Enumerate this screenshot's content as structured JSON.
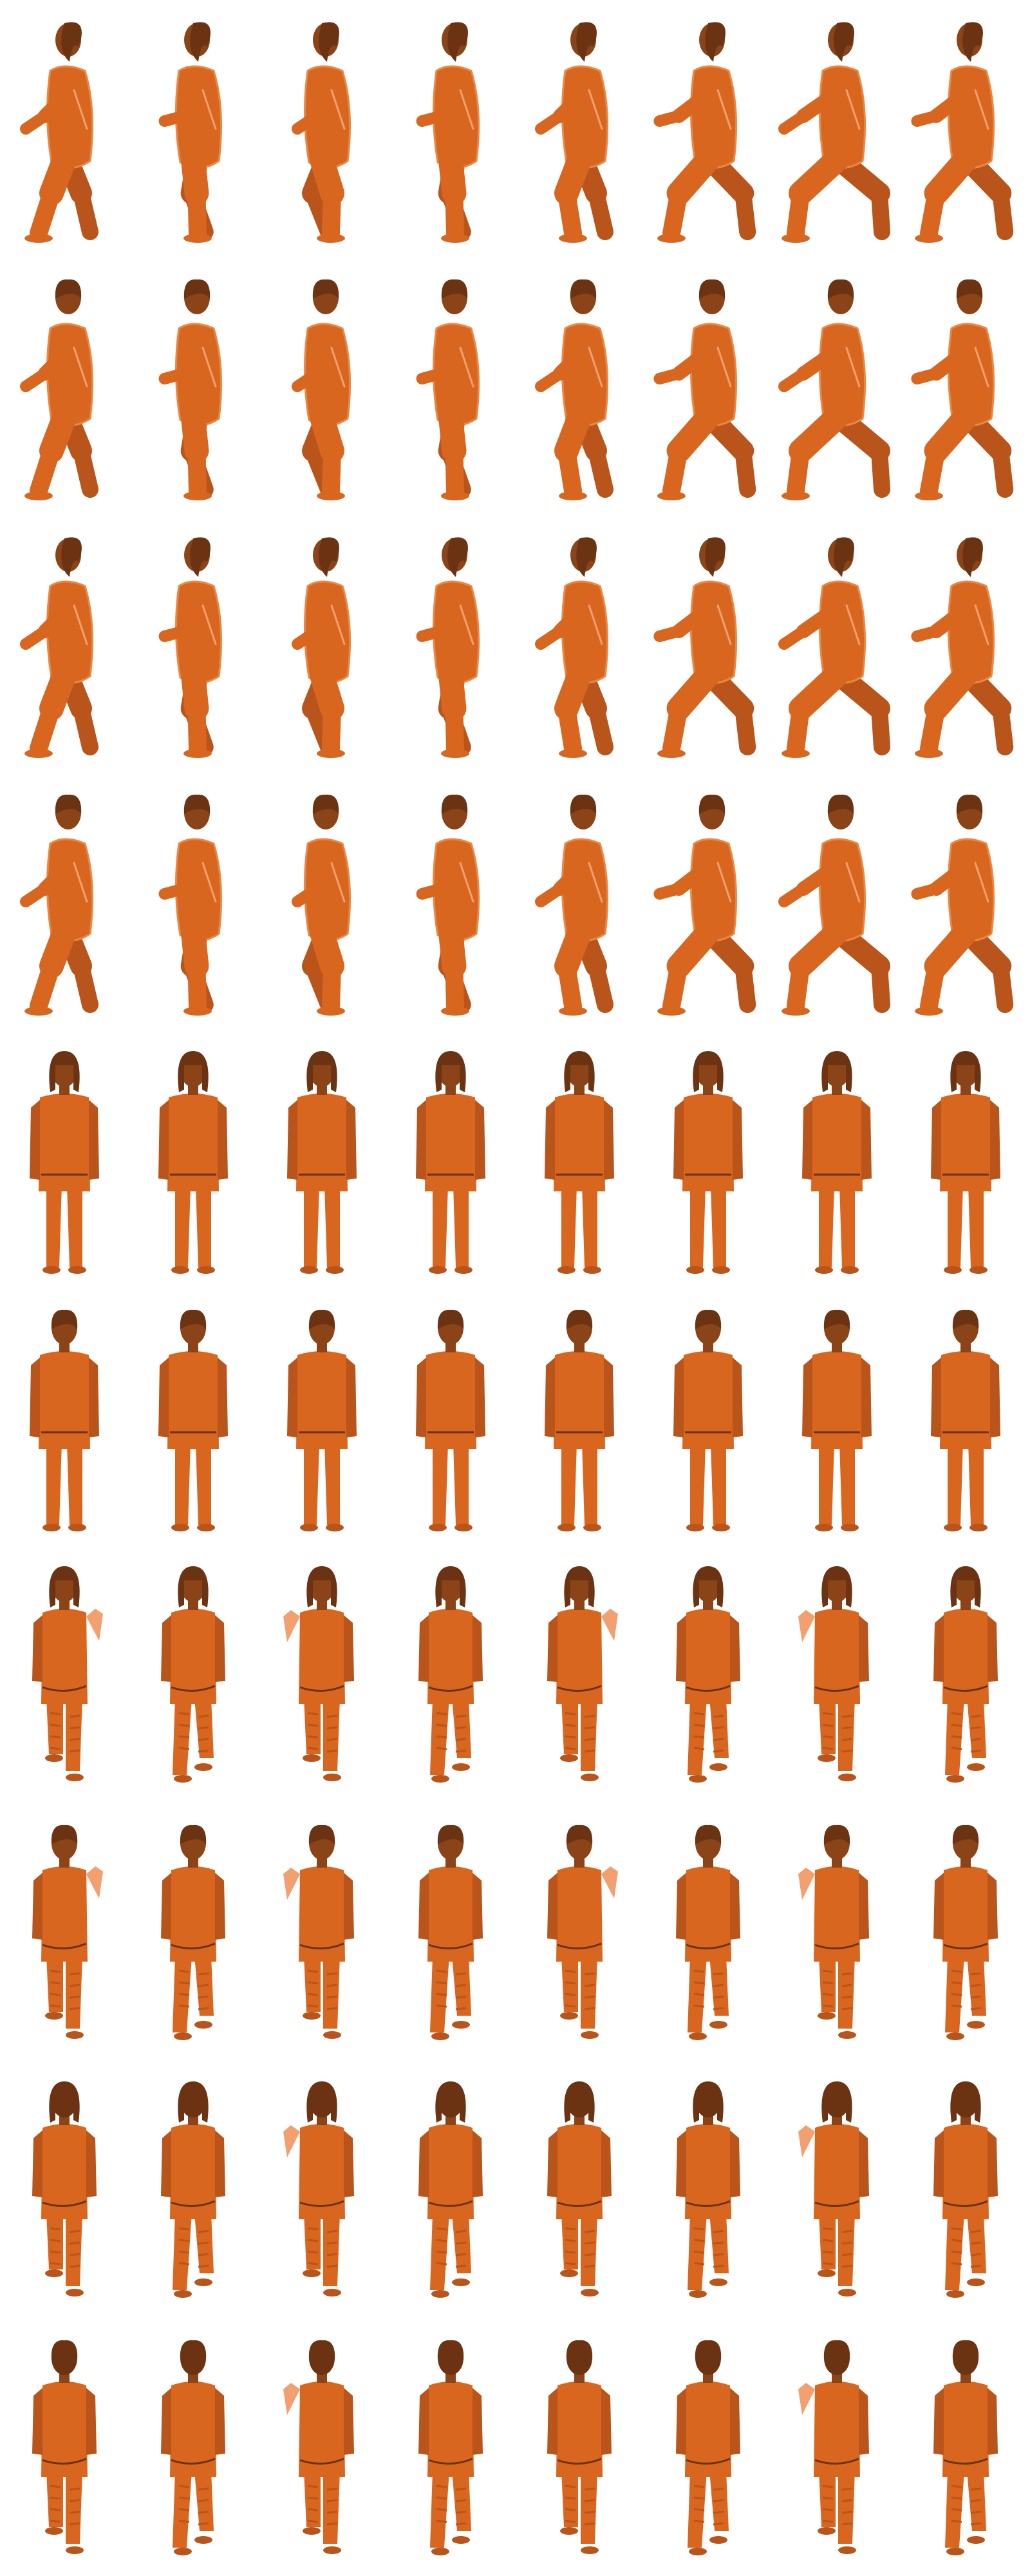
{
  "sprite_sheet": {
    "columns": 8,
    "colors": {
      "background": "#ffffff",
      "body": "#d9661f",
      "shade": "#b9541a",
      "hair": "#6b3312",
      "skin_dark": "#8a4418",
      "outline": "#e98845",
      "highlight": "#f2a070"
    },
    "rows": [
      {
        "name": "run-side-long-hair",
        "pose": "run",
        "view": "side",
        "hair": "long"
      },
      {
        "name": "run-side-short-hair",
        "pose": "run",
        "view": "side",
        "hair": "short"
      },
      {
        "name": "run-side-long-hair-alt",
        "pose": "run",
        "view": "side",
        "hair": "long"
      },
      {
        "name": "run-side-short-hair-alt",
        "pose": "run",
        "view": "side",
        "hair": "short"
      },
      {
        "name": "idle-front-long-hair",
        "pose": "idle",
        "view": "front",
        "hair": "long"
      },
      {
        "name": "idle-front-short-hair",
        "pose": "idle",
        "view": "front",
        "hair": "short"
      },
      {
        "name": "walk-front-long-hair",
        "pose": "walk",
        "view": "front",
        "hair": "long"
      },
      {
        "name": "walk-front-short-hair",
        "pose": "walk",
        "view": "front",
        "hair": "short"
      },
      {
        "name": "walk-back-long-hair",
        "pose": "walk",
        "view": "back",
        "hair": "long"
      },
      {
        "name": "walk-back-short-hair",
        "pose": "walk",
        "view": "back",
        "hair": "short"
      }
    ]
  }
}
